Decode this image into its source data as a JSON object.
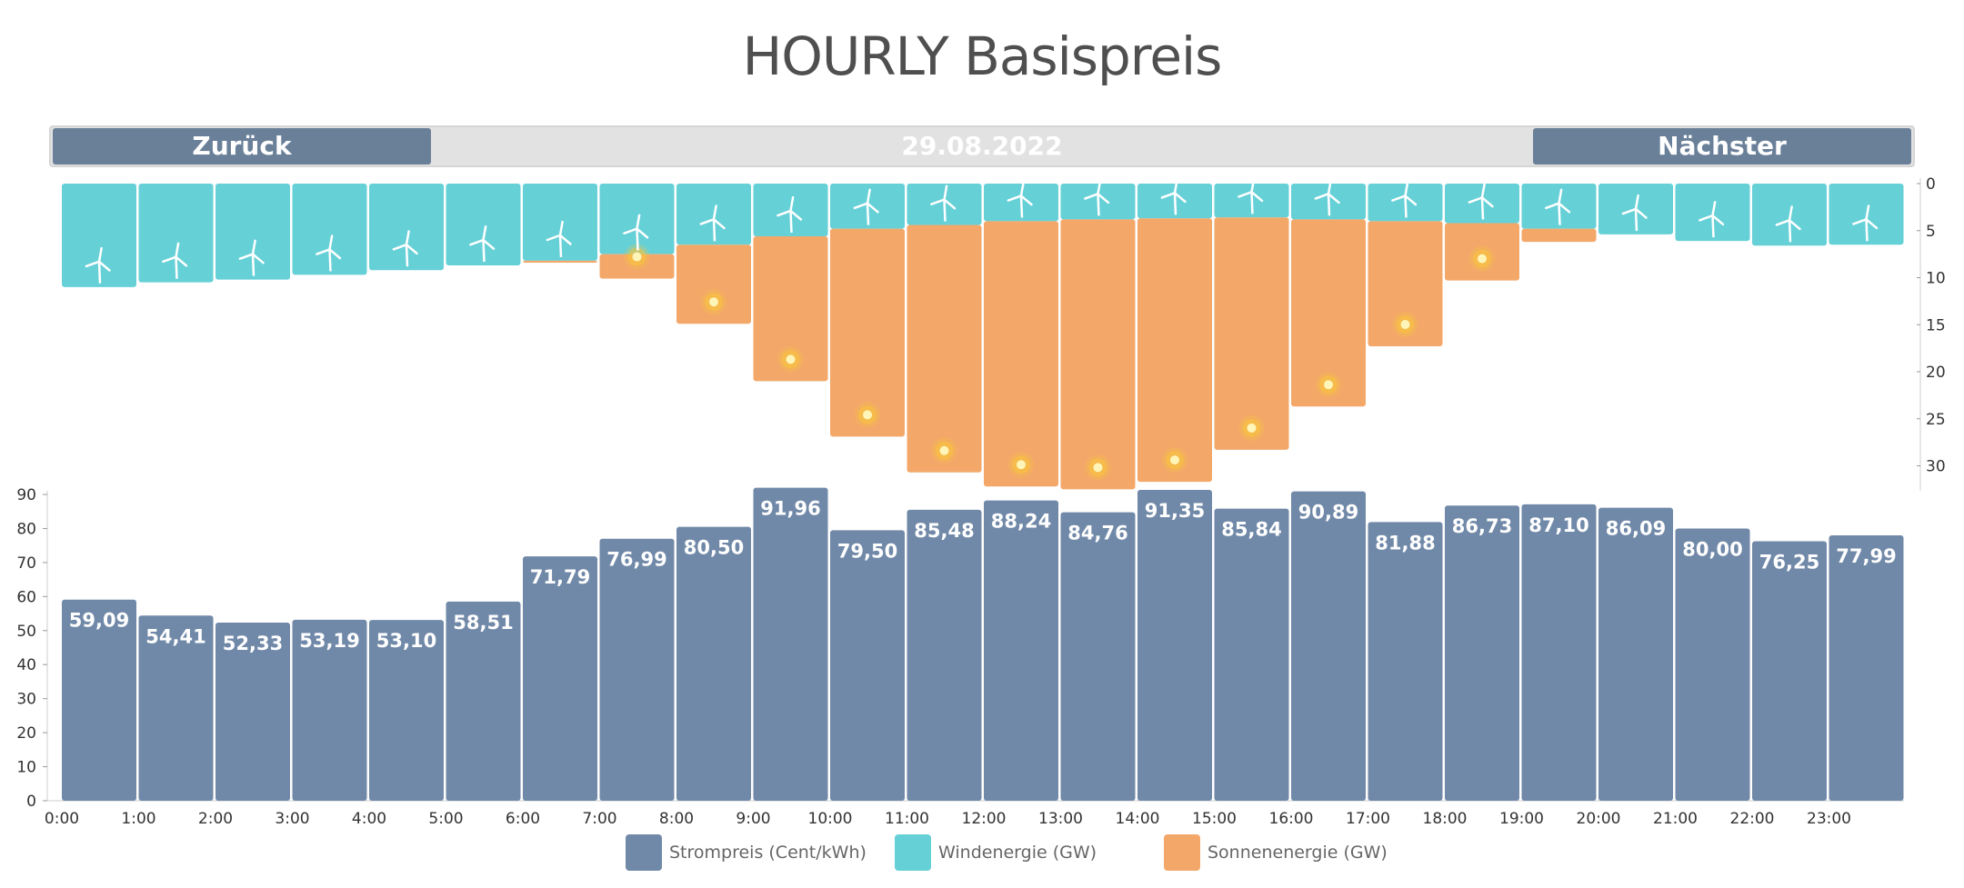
{
  "title": "HOURLY Basispreis",
  "nav": {
    "back_label": "Zurück",
    "date": "29.08.2022",
    "next_label": "Nächster"
  },
  "colors": {
    "price": "#7189a8",
    "wind": "#66d0d7",
    "sun": "#f3a86a",
    "nav_button": "#6a8099",
    "sun_icon": "#f7c43a"
  },
  "legend": [
    {
      "label": "Strompreis (Cent/kWh)",
      "color": "#7189a8"
    },
    {
      "label": "Windenergie (GW)",
      "color": "#66d0d7"
    },
    {
      "label": "Sonnenenergie (GW)",
      "color": "#f3a86a"
    }
  ],
  "chart_data": [
    {
      "type": "bar",
      "name": "energy",
      "icons": {
        "wind": "wind-turbine-icon",
        "sun": "sun-icon"
      },
      "y_axis": {
        "ticks": [
          "0",
          "5",
          "10",
          "15",
          "20",
          "25",
          "30"
        ],
        "ylim": [
          0,
          32
        ],
        "inverted": true
      },
      "x": [
        "0:00",
        "1:00",
        "2:00",
        "3:00",
        "4:00",
        "5:00",
        "6:00",
        "7:00",
        "8:00",
        "9:00",
        "10:00",
        "11:00",
        "12:00",
        "13:00",
        "14:00",
        "15:00",
        "16:00",
        "17:00",
        "18:00",
        "19:00",
        "20:00",
        "21:00",
        "22:00",
        "23:00"
      ],
      "series": [
        {
          "name": "Windenergie (GW)",
          "values": [
            11.0,
            10.5,
            10.2,
            9.7,
            9.2,
            8.7,
            8.2,
            7.5,
            6.5,
            5.6,
            4.8,
            4.4,
            4.0,
            3.8,
            3.7,
            3.6,
            3.8,
            4.0,
            4.2,
            4.8,
            5.4,
            6.1,
            6.6,
            6.5
          ]
        },
        {
          "name": "Sonnenenergie (GW)",
          "values": [
            0.0,
            0.0,
            0.0,
            0.0,
            0.0,
            0.0,
            0.2,
            2.6,
            8.4,
            15.4,
            22.1,
            26.3,
            28.2,
            28.7,
            28.0,
            24.7,
            19.9,
            13.3,
            6.1,
            1.4,
            0.0,
            0.0,
            0.0,
            0.0
          ]
        }
      ]
    },
    {
      "type": "bar",
      "name": "price",
      "y_axis": {
        "ticks": [
          "0",
          "10",
          "20",
          "30",
          "40",
          "50",
          "60",
          "70",
          "80",
          "90"
        ],
        "ylim": [
          0,
          90
        ]
      },
      "x": [
        "0:00",
        "1:00",
        "2:00",
        "3:00",
        "4:00",
        "5:00",
        "6:00",
        "7:00",
        "8:00",
        "9:00",
        "10:00",
        "11:00",
        "12:00",
        "13:00",
        "14:00",
        "15:00",
        "16:00",
        "17:00",
        "18:00",
        "19:00",
        "20:00",
        "21:00",
        "22:00",
        "23:00"
      ],
      "series": [
        {
          "name": "Strompreis (Cent/kWh)",
          "values": [
            59.09,
            54.41,
            52.33,
            53.19,
            53.1,
            58.51,
            71.79,
            76.99,
            80.5,
            91.96,
            79.5,
            85.48,
            88.24,
            84.76,
            91.35,
            85.84,
            90.89,
            81.88,
            86.73,
            87.1,
            86.09,
            80.0,
            76.25,
            77.99
          ],
          "labels": [
            "59,09",
            "54,41",
            "52,33",
            "53,19",
            "53,10",
            "58,51",
            "71,79",
            "76,99",
            "80,50",
            "91,96",
            "79,50",
            "85,48",
            "88,24",
            "84,76",
            "91,35",
            "85,84",
            "90,89",
            "81,88",
            "86,73",
            "87,10",
            "86,09",
            "80,00",
            "76,25",
            "77,99"
          ]
        }
      ]
    }
  ]
}
